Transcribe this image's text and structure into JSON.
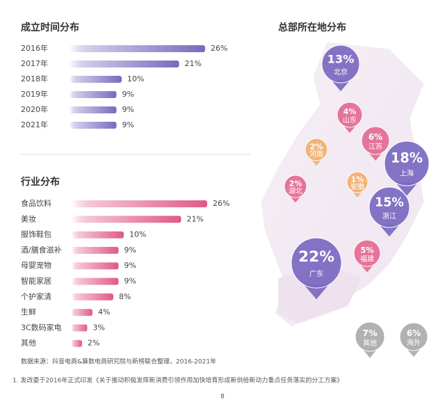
{
  "chart_data": [
    {
      "type": "bar",
      "title": "成立时间分布",
      "orientation": "horizontal",
      "categories": [
        "2016年",
        "2017年",
        "2018年",
        "2019年",
        "2020年",
        "2021年"
      ],
      "values": [
        26,
        21,
        10,
        9,
        9,
        9
      ],
      "value_labels": [
        "26%",
        "21%",
        "10%",
        "9%",
        "9%",
        "9%"
      ],
      "color": "#7a68c0"
    },
    {
      "type": "bar",
      "title": "行业分布",
      "orientation": "horizontal",
      "categories": [
        "食品饮料",
        "美妆",
        "服饰鞋包",
        "酒/膳食滋补",
        "母婴宠物",
        "智能家居",
        "个护家清",
        "生鲜",
        "3C数码家电",
        "其他"
      ],
      "values": [
        26,
        21,
        10,
        9,
        9,
        9,
        8,
        4,
        3,
        2
      ],
      "value_labels": [
        "26%",
        "21%",
        "10%",
        "9%",
        "9%",
        "9%",
        "8%",
        "4%",
        "3%",
        "2%"
      ],
      "color": "#e0588a"
    },
    {
      "type": "pin-map",
      "title": "总部所在地分布",
      "categories": [
        "北京",
        "山东",
        "江苏",
        "河南",
        "上海",
        "湖北",
        "安徽",
        "浙江",
        "福建",
        "广东",
        "其他",
        "海外"
      ],
      "values": [
        13,
        4,
        6,
        2,
        18,
        2,
        1,
        15,
        5,
        22,
        7,
        6
      ],
      "value_labels": [
        "13%",
        "4%",
        "6%",
        "2%",
        "18%",
        "2%",
        "1%",
        "15%",
        "5%",
        "22%",
        "7%",
        "6%"
      ],
      "colors": [
        "#7a68c0",
        "#e36a93",
        "#e36a93",
        "#f0b070",
        "#7a68c0",
        "#e36a93",
        "#f0b070",
        "#7a68c0",
        "#e36a93",
        "#7a68c0",
        "#aaaaaa",
        "#aaaaaa"
      ]
    }
  ],
  "source": "数据来源：抖音电商&算数电商研究院与新榜联合整理，2016-2021年",
  "footnote": "1. 发改委于2016年正式印发《关于推动积极发挥新消费引领作用加快培育形成新供给新动力重点任务落实的分工方案》",
  "page": "8"
}
